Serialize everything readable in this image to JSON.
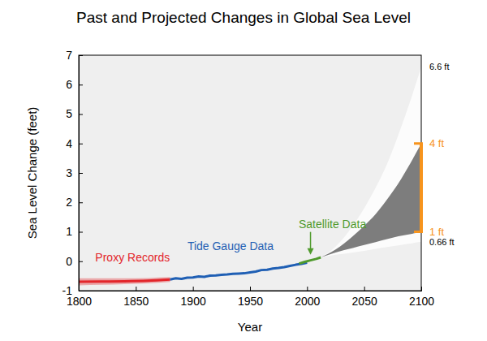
{
  "chart_data": {
    "type": "line",
    "title": "Past and Projected Changes in Global Sea Level",
    "xlabel": "Year",
    "ylabel": "Sea Level Change (feet)",
    "xlim": [
      1800,
      2100
    ],
    "ylim": [
      -1,
      7
    ],
    "xticks": [
      1800,
      1850,
      1900,
      1950,
      2000,
      2050,
      2100
    ],
    "yticks": [
      -1,
      0,
      1,
      2,
      3,
      4,
      5,
      6,
      7
    ],
    "grid": false,
    "series": [
      {
        "type": "area",
        "color": "#fcfcfc",
        "x": [
          2012,
          2025,
          2040,
          2050,
          2060,
          2070,
          2080,
          2090,
          2100
        ],
        "lower": [
          0.13,
          0.22,
          0.3,
          0.35,
          0.42,
          0.48,
          0.54,
          0.6,
          0.66
        ],
        "upper": [
          0.13,
          0.5,
          1.2,
          1.8,
          2.5,
          3.3,
          4.3,
          5.4,
          6.6
        ]
      },
      {
        "type": "area",
        "color": "#7d7d7d",
        "x": [
          2012,
          2025,
          2040,
          2050,
          2060,
          2070,
          2080,
          2090,
          2100
        ],
        "lower": [
          0.13,
          0.3,
          0.45,
          0.55,
          0.65,
          0.75,
          0.85,
          0.92,
          1
        ],
        "upper": [
          0.13,
          0.4,
          0.85,
          1.2,
          1.6,
          2.1,
          2.65,
          3.3,
          4
        ]
      },
      {
        "type": "line",
        "name": "Proxy Records",
        "color": "#e3262b",
        "x": [
          1800,
          1820,
          1840,
          1860,
          1880
        ],
        "values": [
          -0.7,
          -0.69,
          -0.68,
          -0.66,
          -0.62
        ],
        "lower": [
          -0.82,
          -0.8,
          -0.78,
          -0.75,
          -0.7
        ],
        "upper": [
          -0.58,
          -0.58,
          -0.58,
          -0.57,
          -0.54
        ]
      },
      {
        "type": "line",
        "name": "Tide Gauge Data",
        "color": "#1f5fb4",
        "x": [
          1880,
          1885,
          1890,
          1895,
          1900,
          1905,
          1910,
          1915,
          1920,
          1925,
          1930,
          1935,
          1940,
          1945,
          1950,
          1955,
          1960,
          1965,
          1970,
          1975,
          1980,
          1985,
          1990,
          1995,
          2000
        ],
        "values": [
          -0.62,
          -0.58,
          -0.6,
          -0.56,
          -0.55,
          -0.52,
          -0.53,
          -0.49,
          -0.48,
          -0.46,
          -0.45,
          -0.43,
          -0.42,
          -0.41,
          -0.38,
          -0.35,
          -0.3,
          -0.29,
          -0.25,
          -0.23,
          -0.2,
          -0.16,
          -0.12,
          -0.09,
          -0.05
        ]
      },
      {
        "type": "line",
        "name": "Satellite Data",
        "color": "#4f9a2c",
        "x": [
          1993,
          1998,
          2003,
          2008,
          2012
        ],
        "values": [
          -0.08,
          -0.02,
          0.03,
          0.08,
          0.13
        ]
      }
    ],
    "bracket": {
      "x": 2100,
      "y": [
        1,
        4
      ],
      "color": "#f7941d"
    },
    "annotations": [
      {
        "text": "6.6 ft",
        "x": 2100,
        "y": 6.6,
        "color": "#000000"
      },
      {
        "text": "4 ft",
        "x": 2100,
        "y": 4,
        "color": "#f7941d"
      },
      {
        "text": "1 ft",
        "x": 2100,
        "y": 1,
        "color": "#f7941d"
      },
      {
        "text": "0.66 ft",
        "x": 2100,
        "y": 0.66,
        "color": "#000000"
      }
    ]
  }
}
